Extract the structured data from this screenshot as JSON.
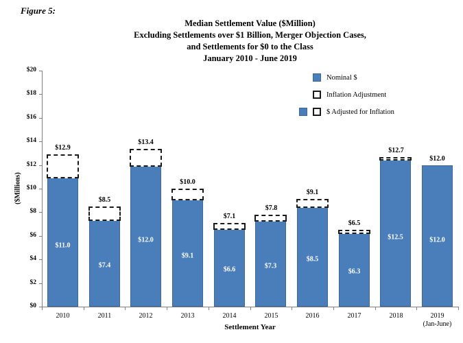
{
  "figure_label": "Figure 5:",
  "chart_data": {
    "type": "bar",
    "title_lines": [
      "Median Settlement Value ($Million)",
      "Excluding Settlements over $1 Billion, Merger Objection Cases,",
      "and Settlements for $0 to the Class",
      "January 2010 - June 2019"
    ],
    "xlabel": "Settlement Year",
    "ylabel": "($Millions)",
    "ylim": [
      0,
      20
    ],
    "ytick_step": 2,
    "ytick_labels": [
      "$0",
      "$2",
      "$4",
      "$6",
      "$8",
      "$10",
      "$12",
      "$14",
      "$16",
      "$18",
      "$20"
    ],
    "grid": false,
    "legend_position": "upper-right-inside",
    "legend": [
      {
        "label": "Nominal $",
        "swatch": "solid"
      },
      {
        "label": "Inflation Adjustment",
        "swatch": "dashed"
      },
      {
        "label": "$ Adjusted for Inflation",
        "swatch": "solid+dashed"
      }
    ],
    "categories": [
      "2010",
      "2011",
      "2012",
      "2013",
      "2014",
      "2015",
      "2016",
      "2017",
      "2018",
      "2019"
    ],
    "category_sublabels": [
      "",
      "",
      "",
      "",
      "",
      "",
      "",
      "",
      "",
      "(Jan-June)"
    ],
    "series": [
      {
        "name": "Nominal $",
        "values": [
          11.0,
          7.4,
          12.0,
          9.1,
          6.6,
          7.3,
          8.5,
          6.3,
          12.5,
          12.0
        ]
      },
      {
        "name": "$ Adjusted for Inflation",
        "values": [
          12.9,
          8.5,
          13.4,
          10.0,
          7.1,
          7.8,
          9.1,
          6.5,
          12.7,
          12.0
        ]
      }
    ],
    "bar_labels": [
      "$11.0",
      "$7.4",
      "$12.0",
      "$9.1",
      "$6.6",
      "$7.3",
      "$8.5",
      "$6.3",
      "$12.5",
      "$12.0"
    ],
    "adjusted_labels": [
      "$12.9",
      "$8.5",
      "$13.4",
      "$10.0",
      "$7.1",
      "$7.8",
      "$9.1",
      "$6.5",
      "$12.7",
      "$12.0"
    ],
    "colors": {
      "bar": "#4a7eba",
      "bar_border": "#3a689c",
      "dashed_border": "#1a1a1a",
      "axis": "#7f7f7f",
      "bar_label": "#ffffff",
      "text": "#000000",
      "background": "#ffffff"
    }
  }
}
